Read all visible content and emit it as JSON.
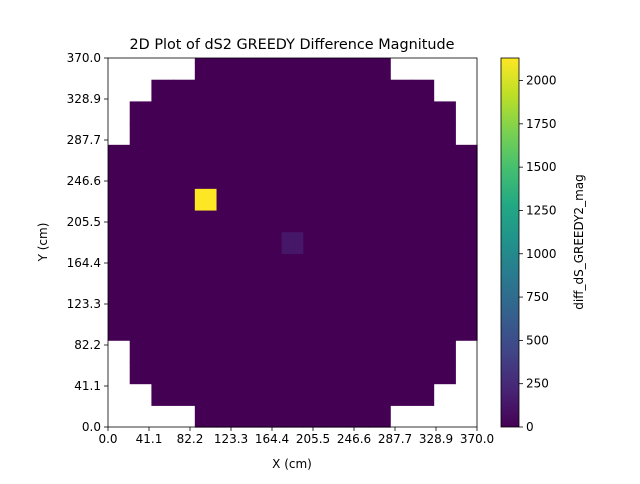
{
  "chart_data": {
    "type": "heatmap",
    "title": "2D Plot of dS2 GREEDY Difference Magnitude",
    "xlabel": "X (cm)",
    "ylabel": "Y (cm)",
    "xlim": [
      0,
      370
    ],
    "ylim": [
      0,
      370
    ],
    "xticks": [
      "0.0",
      "41.1",
      "82.2",
      "123.3",
      "164.4",
      "205.5",
      "246.6",
      "287.7",
      "328.9",
      "370.0"
    ],
    "yticks": [
      "0.0",
      "41.1",
      "82.2",
      "123.3",
      "164.4",
      "205.5",
      "246.6",
      "287.7",
      "328.9",
      "370.0"
    ],
    "grid": false,
    "colormap": "viridis",
    "colorbar": {
      "label": "diff_dS_GREEDY2_mag",
      "range": [
        0,
        2130
      ],
      "ticks": [
        "0",
        "250",
        "500",
        "750",
        "1000",
        "1250",
        "1500",
        "1750",
        "2000"
      ],
      "tick_values": [
        0,
        250,
        500,
        750,
        1000,
        1250,
        1500,
        1750,
        2000
      ]
    },
    "grid_size": 17,
    "row_spans": [
      [
        4,
        12
      ],
      [
        2,
        14
      ],
      [
        1,
        15
      ],
      [
        1,
        15
      ],
      [
        0,
        16
      ],
      [
        0,
        16
      ],
      [
        0,
        16
      ],
      [
        0,
        16
      ],
      [
        0,
        16
      ],
      [
        0,
        16
      ],
      [
        0,
        16
      ],
      [
        0,
        16
      ],
      [
        0,
        16
      ],
      [
        1,
        15
      ],
      [
        1,
        15
      ],
      [
        2,
        14
      ],
      [
        4,
        12
      ]
    ],
    "hot_cells": [
      {
        "col": 4,
        "row": 10,
        "value": 2130
      },
      {
        "col": 8,
        "row": 8,
        "value": 130
      }
    ],
    "base_value": 0
  }
}
